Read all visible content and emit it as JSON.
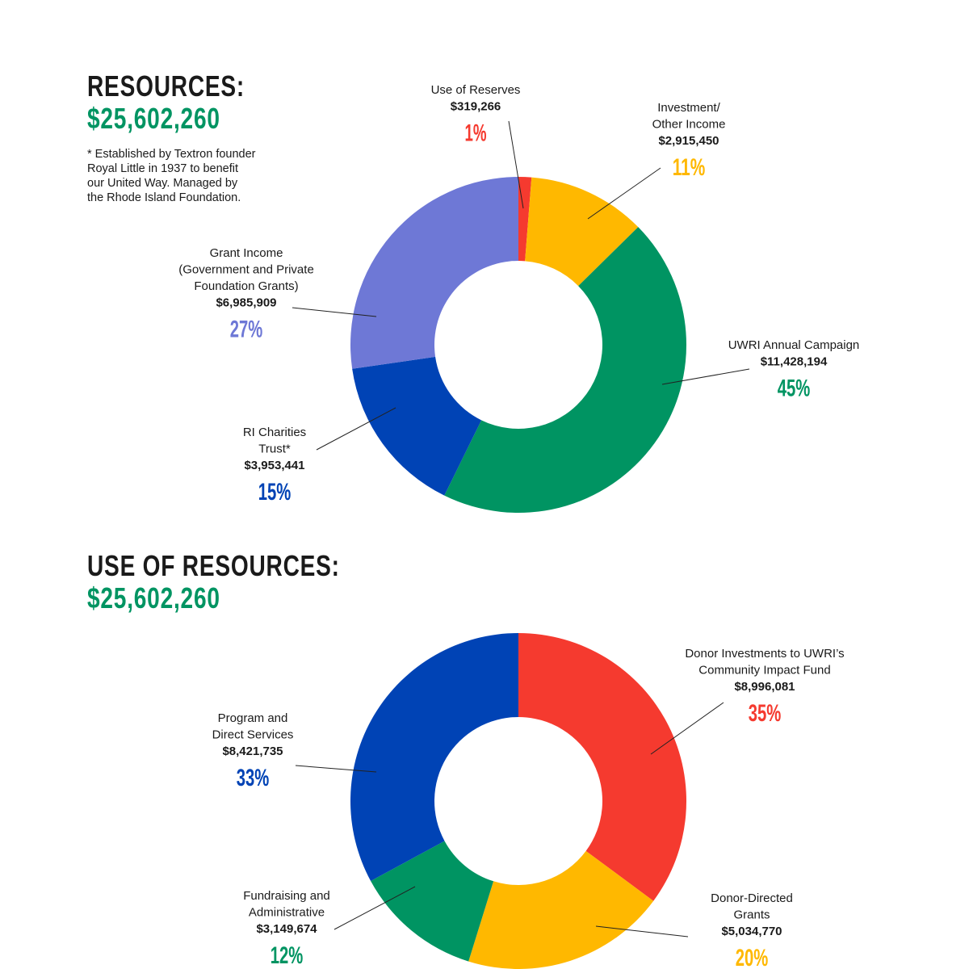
{
  "colors": {
    "red": "#F53A2F",
    "yellow": "#FFB800",
    "green": "#009462",
    "blue": "#0043B5",
    "lavender": "#6E78D6",
    "total_green": "#009462"
  },
  "resources": {
    "heading": "RESOURCES:",
    "total": "$25,602,260",
    "footnote": "* Established by Textron founder\n  Royal Little in 1937 to benefit\n  our United Way. Managed by\n  the Rhode Island Foundation."
  },
  "uses": {
    "heading": "USE OF RESOURCES:",
    "total": "$25,602,260"
  },
  "chart_data": [
    {
      "type": "pie",
      "donut": true,
      "title": "RESOURCES:",
      "slices": [
        {
          "label": [
            "Use of Reserves"
          ],
          "amount": "$319,266",
          "percent": "1%",
          "value": 319266,
          "color": "#F53A2F"
        },
        {
          "label": [
            "Investment/",
            "Other Income"
          ],
          "amount": "$2,915,450",
          "percent": "11%",
          "value": 2915450,
          "color": "#FFB800"
        },
        {
          "label": [
            "UWRI Annual Campaign"
          ],
          "amount": "$11,428,194",
          "percent": "45%",
          "value": 11428194,
          "color": "#009462"
        },
        {
          "label": [
            "RI Charities",
            "Trust*"
          ],
          "amount": "$3,953,441",
          "percent": "15%",
          "value": 3953441,
          "color": "#0043B5"
        },
        {
          "label": [
            "Grant Income",
            "(Government and Private",
            "Foundation Grants)"
          ],
          "amount": "$6,985,909",
          "percent": "27%",
          "value": 6985909,
          "color": "#6E78D6"
        }
      ]
    },
    {
      "type": "pie",
      "donut": true,
      "title": "USE OF RESOURCES:",
      "slices": [
        {
          "label": [
            "Donor Investments to UWRI’s",
            "Community Impact Fund"
          ],
          "amount": "$8,996,081",
          "percent": "35%",
          "value": 8996081,
          "color": "#F53A2F"
        },
        {
          "label": [
            "Donor-Directed",
            "Grants"
          ],
          "amount": "$5,034,770",
          "percent": "20%",
          "value": 5034770,
          "color": "#FFB800"
        },
        {
          "label": [
            "Fundraising and",
            "Administrative"
          ],
          "amount": "$3,149,674",
          "percent": "12%",
          "value": 3149674,
          "color": "#009462"
        },
        {
          "label": [
            "Program and",
            "Direct Services"
          ],
          "amount": "$8,421,735",
          "percent": "33%",
          "value": 8421735,
          "color": "#0043B5"
        }
      ]
    }
  ]
}
